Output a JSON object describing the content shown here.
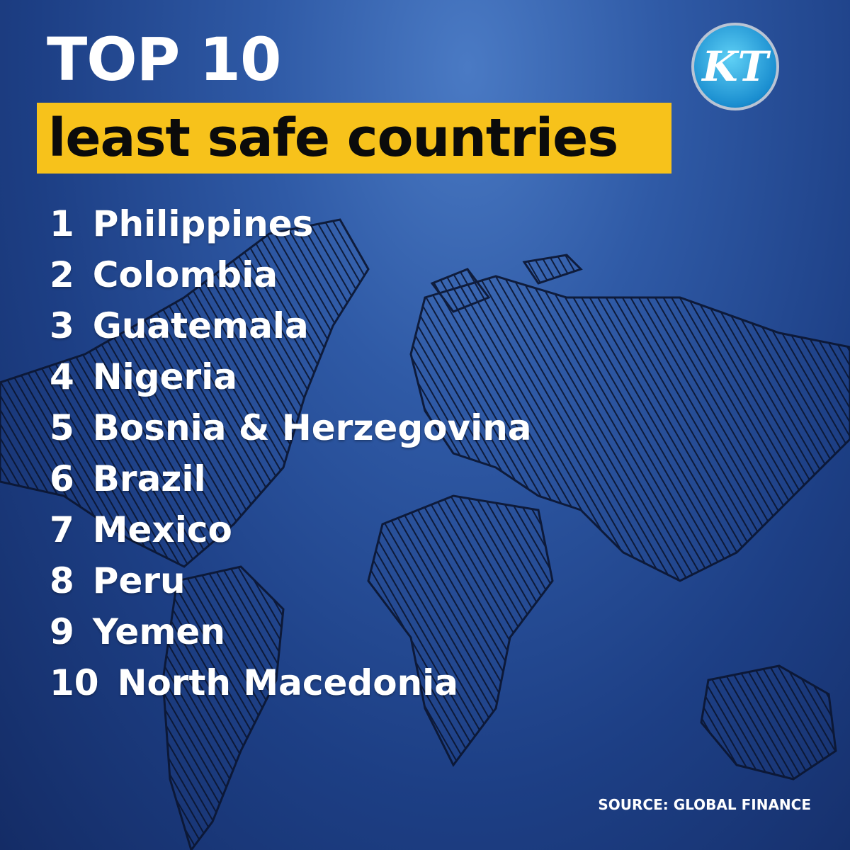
{
  "title": "TOP 10",
  "subtitle": "least safe countries",
  "logo": "KT",
  "list": [
    {
      "rank": "1",
      "name": "Philippines"
    },
    {
      "rank": "2",
      "name": "Colombia"
    },
    {
      "rank": "3",
      "name": "Guatemala"
    },
    {
      "rank": "4",
      "name": "Nigeria"
    },
    {
      "rank": "5",
      "name": "Bosnia & Herzegovina"
    },
    {
      "rank": "6",
      "name": "Brazil"
    },
    {
      "rank": "7",
      "name": "Mexico"
    },
    {
      "rank": "8",
      "name": "Peru"
    },
    {
      "rank": "9",
      "name": "Yemen"
    },
    {
      "rank": "10",
      "name": "North Macedonia"
    }
  ],
  "source": "SOURCE: GLOBAL FINANCE"
}
